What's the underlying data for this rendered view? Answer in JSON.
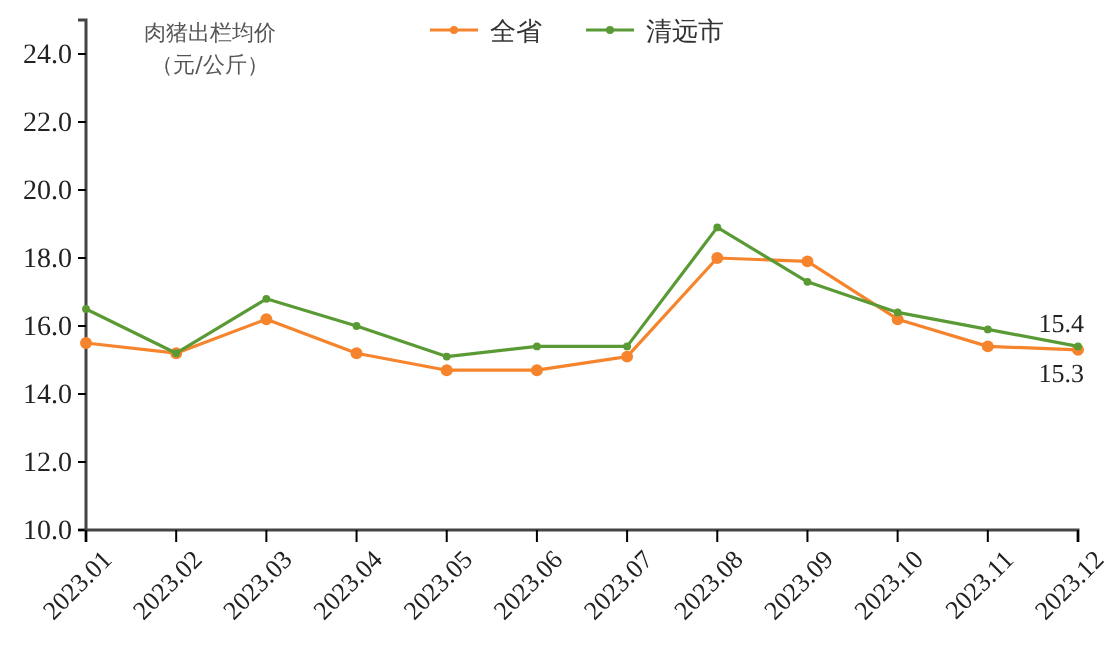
{
  "chart_data": {
    "type": "line",
    "ylabel": "肉猪出栏均价（元/公斤）",
    "categories": [
      "2023.01",
      "2023.02",
      "2023.03",
      "2023.04",
      "2023.05",
      "2023.06",
      "2023.07",
      "2023.08",
      "2023.09",
      "2023.10",
      "2023.11",
      "2023.12"
    ],
    "series": [
      {
        "name": "全省",
        "color": "#f5842c",
        "values": [
          15.5,
          15.2,
          16.2,
          15.2,
          14.7,
          14.7,
          15.1,
          18.0,
          17.9,
          16.2,
          15.4,
          15.3
        ],
        "value_labels": [
          null,
          null,
          null,
          null,
          null,
          null,
          null,
          null,
          null,
          null,
          null,
          "15.3"
        ]
      },
      {
        "name": "清远市",
        "color": "#5a9a35",
        "values": [
          16.5,
          15.2,
          16.8,
          16.0,
          15.1,
          15.4,
          15.4,
          18.9,
          17.3,
          16.4,
          15.9,
          15.4
        ],
        "value_labels": [
          null,
          null,
          null,
          null,
          null,
          null,
          null,
          null,
          null,
          null,
          null,
          "15.4"
        ]
      }
    ],
    "ylim": [
      10,
      25
    ],
    "yticks": [
      {
        "value": 10,
        "label": "10.0"
      },
      {
        "value": 12,
        "label": "12.0"
      },
      {
        "value": 14,
        "label": "14.0"
      },
      {
        "value": 16,
        "label": "16.0"
      },
      {
        "value": 18,
        "label": "18.0"
      },
      {
        "value": 20,
        "label": "20.0"
      },
      {
        "value": 22,
        "label": "22.0"
      },
      {
        "value": 24,
        "label": "24.0"
      }
    ],
    "grid": false,
    "legend": "top",
    "marker": "circle",
    "line_style": "solid"
  }
}
